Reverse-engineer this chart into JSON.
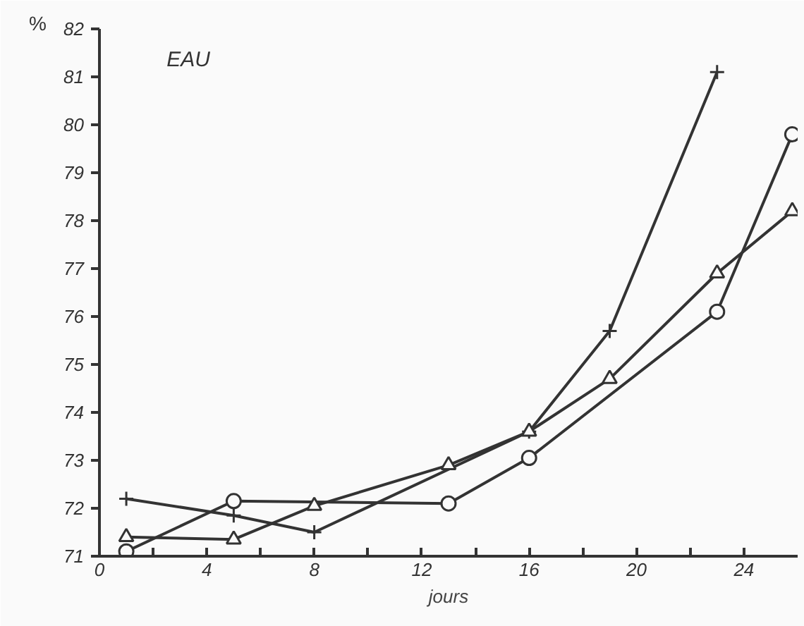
{
  "chart_data": {
    "type": "line",
    "title": "EAU",
    "xlabel": "jours",
    "ylabel": "%",
    "xlim": [
      0,
      26
    ],
    "ylim": [
      71,
      82
    ],
    "xticks": [
      0,
      {
        "value": 2,
        "label": null
      },
      4,
      {
        "value": 6,
        "label": null
      },
      8,
      {
        "value": 10,
        "label": null
      },
      12,
      {
        "value": 14,
        "label": null
      },
      16,
      {
        "value": 18,
        "label": null
      },
      20,
      {
        "value": 22,
        "label": null
      },
      24
    ],
    "yticks": [
      71,
      72,
      73,
      74,
      75,
      76,
      77,
      78,
      79,
      80,
      81,
      82
    ],
    "grid": false,
    "line_style": "solid",
    "series": [
      {
        "color": "#333333",
        "marker": "cross",
        "x": [
          1,
          5,
          8,
          16,
          19,
          23
        ],
        "values": [
          72.2,
          71.85,
          71.5,
          73.6,
          75.7,
          81.1
        ]
      },
      {
        "color": "#333333",
        "marker": "circle",
        "x": [
          1,
          5,
          13,
          16,
          23,
          25.8
        ],
        "values": [
          71.1,
          72.15,
          72.1,
          73.05,
          76.1,
          79.8
        ]
      },
      {
        "color": "#333333",
        "marker": "triangle",
        "x": [
          1,
          5,
          8,
          13,
          16,
          19,
          23,
          25.8
        ],
        "values": [
          71.4,
          71.35,
          72.05,
          72.9,
          73.6,
          74.7,
          76.9,
          78.2
        ]
      }
    ]
  }
}
